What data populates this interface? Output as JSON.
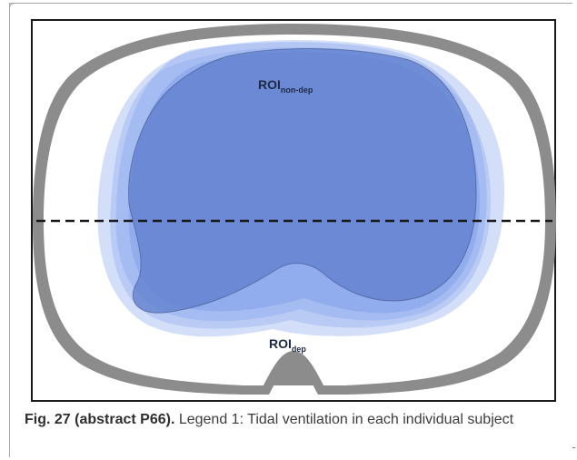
{
  "figure": {
    "roi_upper_label": "ROI",
    "roi_upper_sub": "non-dep",
    "roi_lower_label": "ROI",
    "roi_lower_sub": "dep",
    "colors": {
      "outline": "#8c8c8c",
      "region_dark": "#5d7dcc",
      "region_mid": "#7f9de8",
      "region_light": "#aec3f2",
      "dashed_line": "#1a1a1a"
    }
  },
  "caption": {
    "label": "Fig. 27 (abstract P66).",
    "text": " Legend 1: Tidal ventilation in each individual subject"
  }
}
